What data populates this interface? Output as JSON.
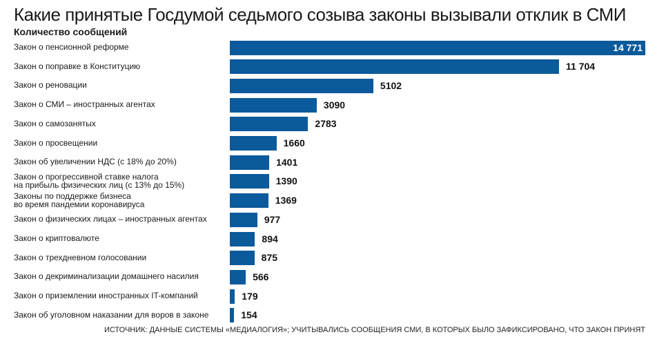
{
  "chart_data": {
    "type": "bar",
    "orientation": "horizontal",
    "title": "Какие принятые Госдумой седьмого созыва законы вызывали отклик в СМИ",
    "subtitle": "Количество сообщений",
    "source": "ИСТОЧНИК: ДАННЫЕ СИСТЕМЫ «МЕДИАЛОГИЯ»; УЧИТЫВАЛИСЬ СООБЩЕНИЯ СМИ, В КОТОРЫХ БЫЛО ЗАФИКСИРОВАНО, ЧТО ЗАКОН ПРИНЯТ",
    "color": "#0b5a9b",
    "categories": [
      "Закон о пенсионной реформе",
      "Закон о поправке в Конституцию",
      "Закон о реновации",
      "Закон о СМИ – иностранных агентах",
      "Закон о самозанятых",
      "Закон о просвещении",
      "Закон об увеличении НДС (с 18% до 20%)",
      "Закон о прогрессивной ставке налога\nна прибыль физических лиц (с 13% до 15%)",
      "Законы по поддержке бизнеса\nво время пандемии коронавируса",
      "Закон о физических лицах – иностранных агентах",
      "Закон о криптовалюте",
      "Закон о трехдневном голосовании",
      "Закон о декриминализации домашнего насилия",
      "Закон о приземлении иностранных IT-компаний",
      "Закон об уголовном наказании для воров в законе"
    ],
    "values": [
      14771,
      11704,
      5102,
      3090,
      2783,
      1660,
      1401,
      1390,
      1369,
      977,
      894,
      875,
      566,
      179,
      154
    ],
    "value_labels": [
      "14 771",
      "11 704",
      "5102",
      "3090",
      "2783",
      "1660",
      "1401",
      "1390",
      "1369",
      "977",
      "894",
      "875",
      "566",
      "179",
      "154"
    ]
  }
}
